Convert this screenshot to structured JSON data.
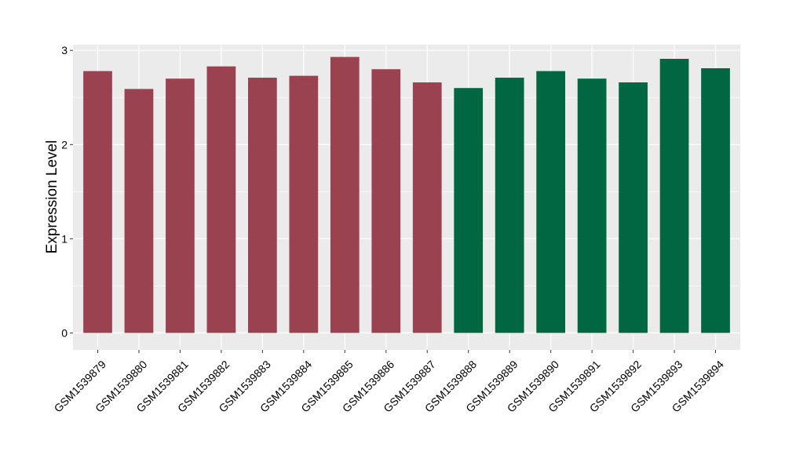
{
  "chart_data": {
    "type": "bar",
    "title": "",
    "xlabel": "",
    "ylabel": "Expression Level",
    "ylim": [
      -0.18,
      3.06
    ],
    "yticks": [
      0,
      1,
      2,
      3
    ],
    "grid": true,
    "legend": "none",
    "colors": {
      "group1": "#9B4251",
      "group2": "#006743",
      "panel": "#EBEBEB",
      "gridline": "#FFFFFF",
      "text": "#000000"
    },
    "categories": [
      "GSM1539879",
      "GSM1539880",
      "GSM1539881",
      "GSM1539882",
      "GSM1539883",
      "GSM1539884",
      "GSM1539885",
      "GSM1539886",
      "GSM1539887",
      "GSM1539888",
      "GSM1539889",
      "GSM1539890",
      "GSM1539891",
      "GSM1539892",
      "GSM1539893",
      "GSM1539894"
    ],
    "values": [
      2.78,
      2.59,
      2.7,
      2.83,
      2.71,
      2.73,
      2.93,
      2.8,
      2.66,
      2.6,
      2.71,
      2.78,
      2.7,
      2.66,
      2.91,
      2.81
    ],
    "bar_groups": [
      "group1",
      "group1",
      "group1",
      "group1",
      "group1",
      "group1",
      "group1",
      "group1",
      "group1",
      "group2",
      "group2",
      "group2",
      "group2",
      "group2",
      "group2",
      "group2"
    ]
  }
}
